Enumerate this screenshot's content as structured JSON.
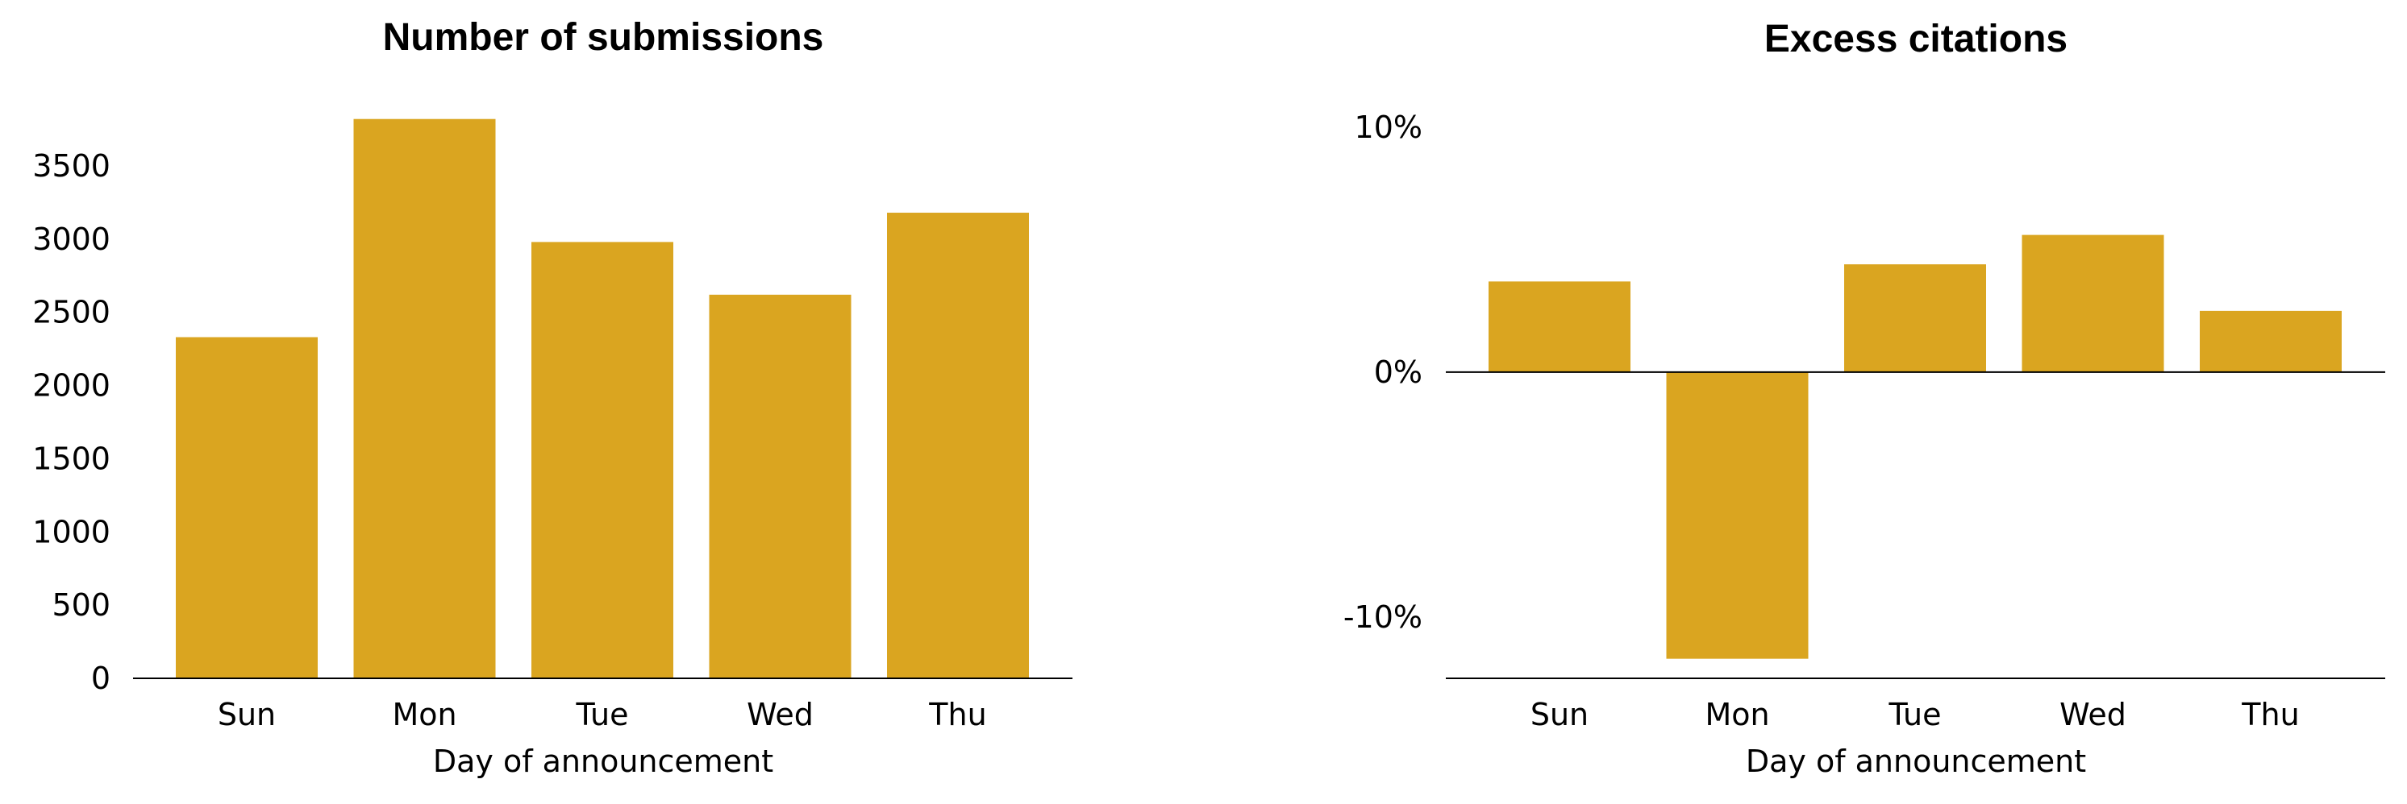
{
  "chart_data": [
    {
      "type": "bar",
      "title": "Number of submissions",
      "xlabel": "Day of announcement",
      "ylabel": "",
      "categories": [
        "Sun",
        "Mon",
        "Tue",
        "Wed",
        "Thu"
      ],
      "values": [
        2330,
        3820,
        2980,
        2620,
        3180
      ],
      "ylim": [
        0,
        4000
      ],
      "yticks": [
        0,
        500,
        1000,
        1500,
        2000,
        2500,
        3000,
        3500
      ],
      "ytick_labels": [
        "0",
        "500",
        "1000",
        "1500",
        "2000",
        "2500",
        "3000",
        "3500"
      ],
      "bar_color": "#DAA520",
      "grid": false
    },
    {
      "type": "bar",
      "title": "Excess citations",
      "xlabel": "Day of announcement",
      "ylabel": "",
      "categories": [
        "Sun",
        "Mon",
        "Tue",
        "Wed",
        "Thu"
      ],
      "values": [
        3.7,
        -11.7,
        4.4,
        5.6,
        2.5
      ],
      "ylim": [
        -12.5,
        12
      ],
      "yticks": [
        -10,
        0,
        10
      ],
      "ytick_labels": [
        "-10%",
        "0%",
        "10%"
      ],
      "bar_color": "#DAA520",
      "grid": false
    }
  ]
}
